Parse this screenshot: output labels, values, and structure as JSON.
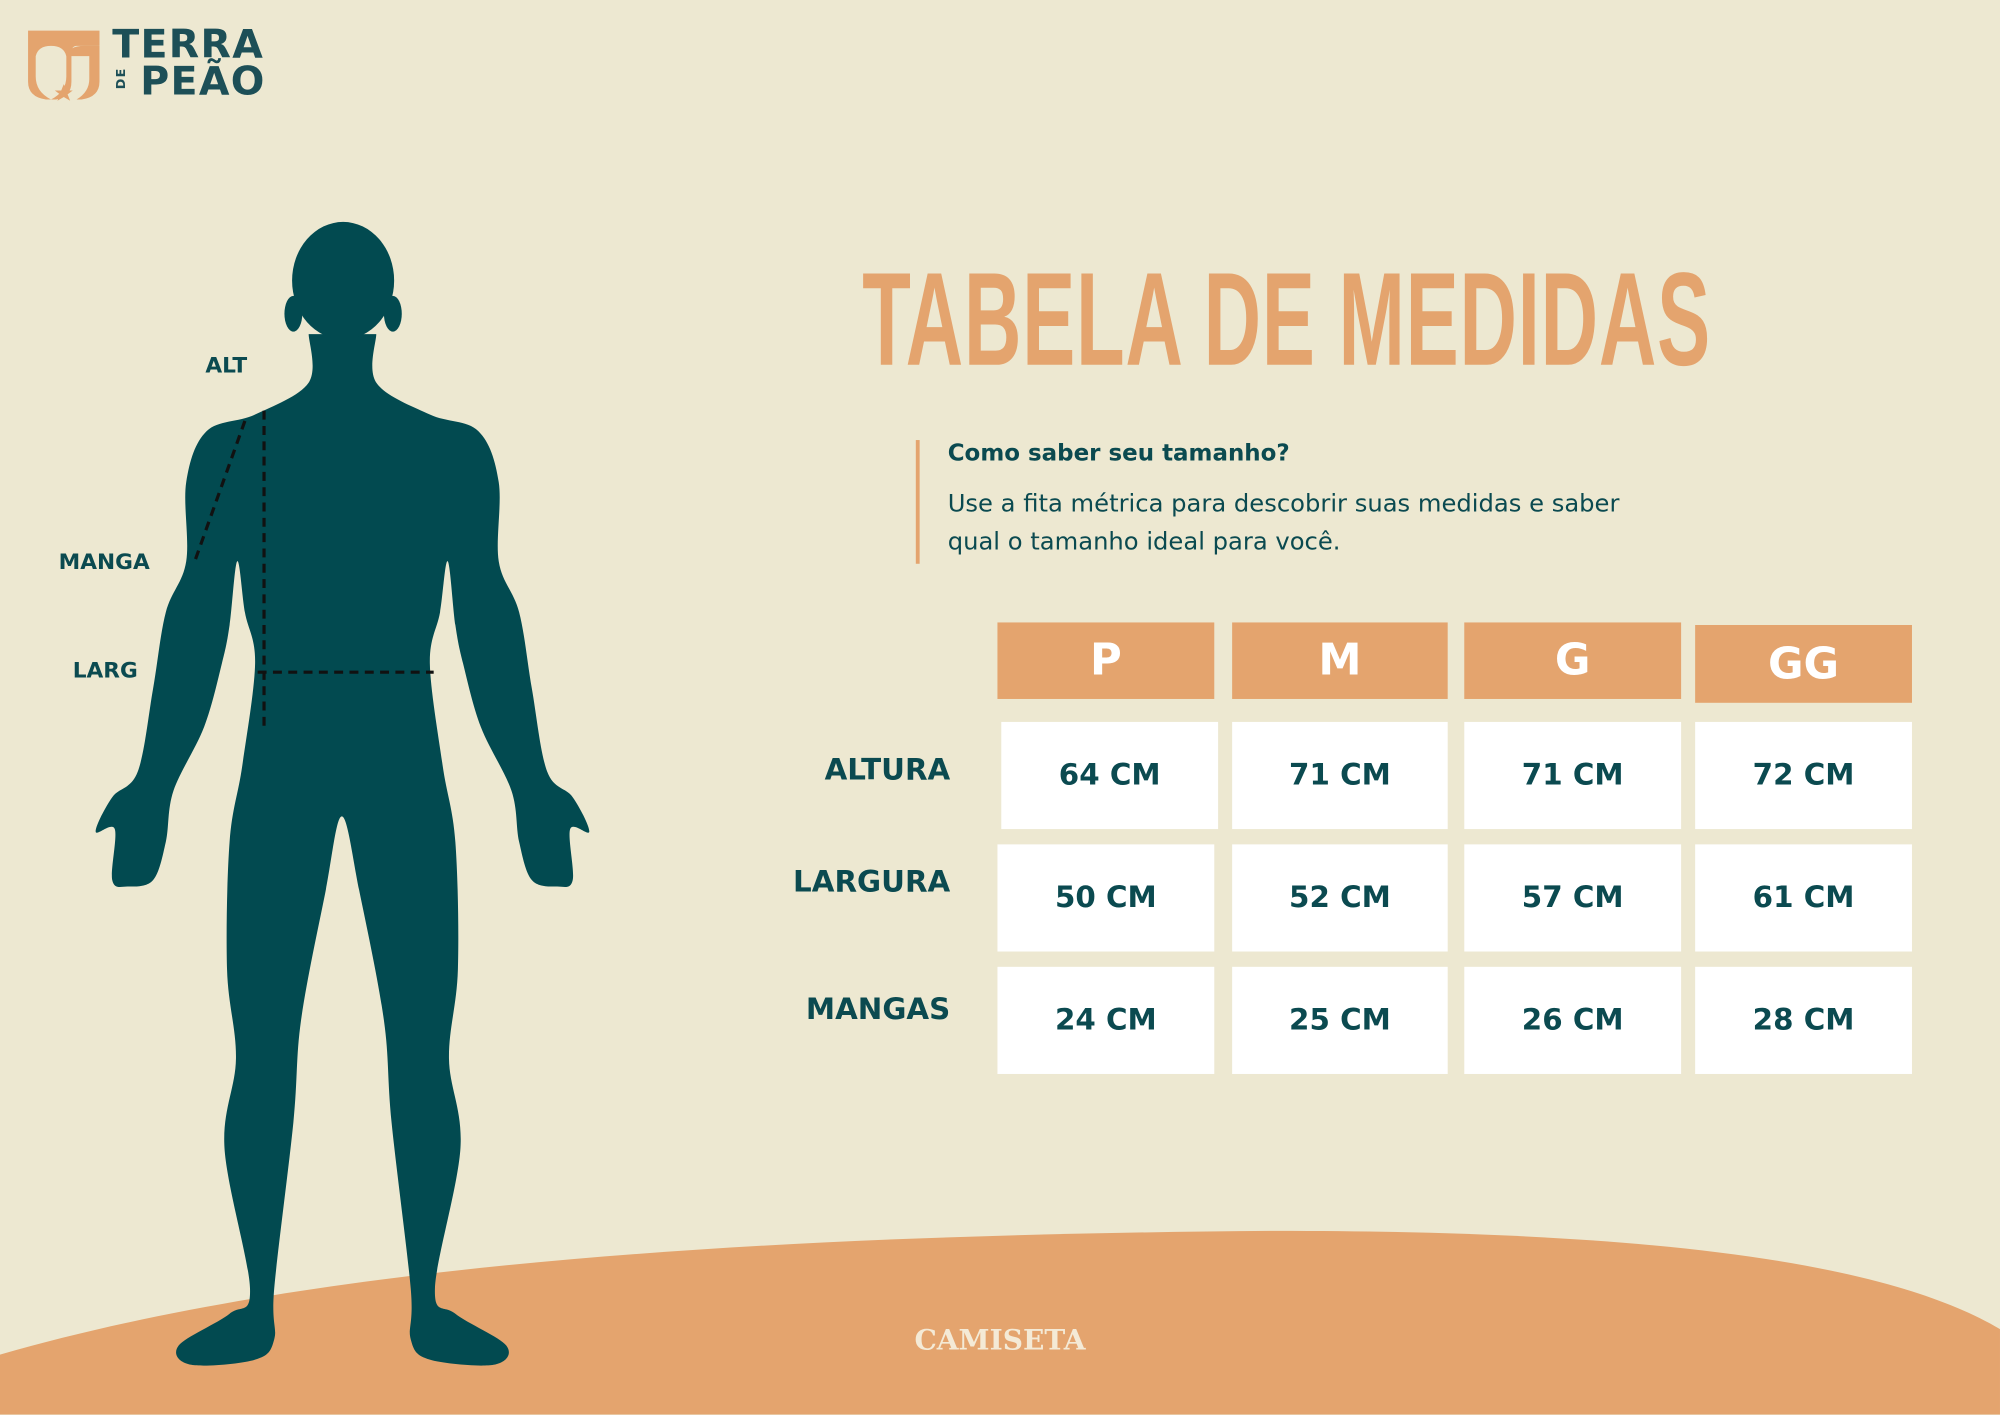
{
  "brand": {
    "line1": "TERRA",
    "small": "DE",
    "line2": "PEÃO"
  },
  "title": "TABELA DE MEDIDAS",
  "info": {
    "question": "Como saber seu tamanho?",
    "text": "Use a fita métrica para descobrir suas medidas e saber qual o tamanho ideal para você."
  },
  "body_labels": {
    "alt": "ALT",
    "manga": "MANGA",
    "larg": "LARG"
  },
  "table": {
    "sizes": [
      "P",
      "M",
      "G",
      "GG"
    ],
    "rows": [
      {
        "label": "ALTURA",
        "values": [
          "64 CM",
          "71 CM",
          "71 CM",
          "72 CM"
        ]
      },
      {
        "label": "LARGURA",
        "values": [
          "50 CM",
          "52 CM",
          "57 CM",
          "61 CM"
        ]
      },
      {
        "label": "MANGAS",
        "values": [
          "24 CM",
          "25 CM",
          "26 CM",
          "28 CM"
        ]
      }
    ]
  },
  "footer": "CAMISETA",
  "colors": {
    "background": "#ede8d1",
    "teal": "#0b4a50",
    "orange": "#e4a46e"
  }
}
